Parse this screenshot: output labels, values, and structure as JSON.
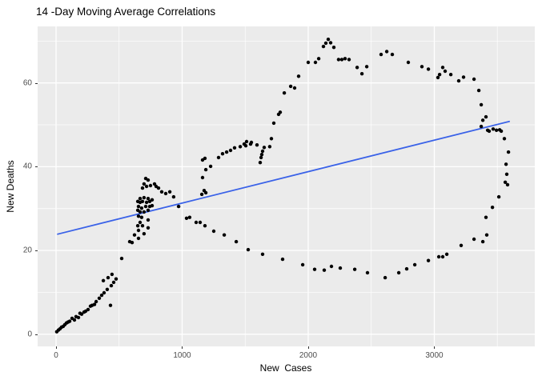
{
  "chart_data": {
    "type": "scatter",
    "title": "14 -Day Moving Average Correlations",
    "xlabel": "New  Cases",
    "ylabel": "New Deaths",
    "x_ticks": [
      0,
      1000,
      2000,
      3000
    ],
    "y_ticks": [
      0,
      20,
      40,
      60
    ],
    "x_minor_ticks": [
      500,
      1500,
      2500,
      3500
    ],
    "y_minor_ticks": [
      10,
      30,
      50,
      70
    ],
    "x_range": [
      -146,
      3797
    ],
    "y_range": [
      -2.9,
      73.5
    ],
    "grid": "on",
    "legend": "none",
    "panel_background": "#EBEBEB",
    "grid_color": "#FFFFFF",
    "point_color": "#000000",
    "tick_label_color": "#4d4d4d",
    "trend_line": {
      "color": "#3A62E8",
      "x1": 13,
      "y1": 23.9,
      "x2": 3594,
      "y2": 50.8
    },
    "points": [
      [
        6,
        0.6
      ],
      [
        19,
        1.0
      ],
      [
        32,
        1.3
      ],
      [
        44,
        1.7
      ],
      [
        57,
        1.9
      ],
      [
        70,
        2.3
      ],
      [
        83,
        2.7
      ],
      [
        95,
        2.9
      ],
      [
        108,
        3.1
      ],
      [
        127,
        3.8
      ],
      [
        146,
        3.4
      ],
      [
        159,
        4.2
      ],
      [
        178,
        4.0
      ],
      [
        190,
        5.0
      ],
      [
        203,
        4.8
      ],
      [
        222,
        5.3
      ],
      [
        235,
        5.5
      ],
      [
        254,
        5.9
      ],
      [
        273,
        6.7
      ],
      [
        286,
        6.9
      ],
      [
        305,
        7.1
      ],
      [
        318,
        7.8
      ],
      [
        343,
        8.6
      ],
      [
        362,
        9.3
      ],
      [
        381,
        9.9
      ],
      [
        406,
        10.7
      ],
      [
        432,
        6.9
      ],
      [
        438,
        11.6
      ],
      [
        457,
        12.4
      ],
      [
        476,
        13.2
      ],
      [
        375,
        12.8
      ],
      [
        413,
        13.5
      ],
      [
        444,
        14.3
      ],
      [
        521,
        18.1
      ],
      [
        584,
        22.1
      ],
      [
        603,
        21.9
      ],
      [
        622,
        23.7
      ],
      [
        648,
        25.9
      ],
      [
        711,
        37.2
      ],
      [
        730,
        36.8
      ],
      [
        698,
        35.9
      ],
      [
        686,
        34.9
      ],
      [
        718,
        35.3
      ],
      [
        749,
        35.5
      ],
      [
        781,
        35.9
      ],
      [
        794,
        35.3
      ],
      [
        813,
        34.9
      ],
      [
        838,
        34.0
      ],
      [
        870,
        33.6
      ],
      [
        902,
        34.0
      ],
      [
        933,
        32.8
      ],
      [
        972,
        30.5
      ],
      [
        667,
        32.4
      ],
      [
        698,
        32.6
      ],
      [
        730,
        32.4
      ],
      [
        648,
        31.7
      ],
      [
        667,
        31.5
      ],
      [
        686,
        31.7
      ],
      [
        718,
        31.5
      ],
      [
        743,
        31.7
      ],
      [
        762,
        32.1
      ],
      [
        654,
        30.5
      ],
      [
        679,
        30.1
      ],
      [
        711,
        30.5
      ],
      [
        743,
        30.5
      ],
      [
        762,
        30.7
      ],
      [
        648,
        29.6
      ],
      [
        667,
        29.2
      ],
      [
        698,
        29.2
      ],
      [
        730,
        29.6
      ],
      [
        654,
        28.2
      ],
      [
        679,
        27.9
      ],
      [
        730,
        27.3
      ],
      [
        667,
        26.7
      ],
      [
        686,
        25.9
      ],
      [
        730,
        25.4
      ],
      [
        654,
        24.8
      ],
      [
        698,
        24.0
      ],
      [
        654,
        22.9
      ],
      [
        1156,
        33.4
      ],
      [
        1175,
        34.3
      ],
      [
        1188,
        33.8
      ],
      [
        1162,
        37.4
      ],
      [
        1188,
        39.3
      ],
      [
        1226,
        40.1
      ],
      [
        1162,
        41.6
      ],
      [
        1181,
        42.0
      ],
      [
        1289,
        42.2
      ],
      [
        1321,
        43.1
      ],
      [
        1353,
        43.5
      ],
      [
        1384,
        43.9
      ],
      [
        1416,
        44.5
      ],
      [
        1461,
        44.8
      ],
      [
        1505,
        45.0
      ],
      [
        1543,
        45.4
      ],
      [
        1492,
        45.4
      ],
      [
        1511,
        46.0
      ],
      [
        1549,
        45.8
      ],
      [
        1594,
        45.2
      ],
      [
        1651,
        44.6
      ],
      [
        1695,
        44.8
      ],
      [
        1638,
        43.7
      ],
      [
        1632,
        42.9
      ],
      [
        1626,
        42.2
      ],
      [
        1619,
        41.0
      ],
      [
        1708,
        46.7
      ],
      [
        1727,
        50.4
      ],
      [
        1765,
        52.5
      ],
      [
        1778,
        53.0
      ],
      [
        1810,
        57.6
      ],
      [
        1861,
        59.2
      ],
      [
        1892,
        58.8
      ],
      [
        1924,
        61.6
      ],
      [
        2000,
        64.9
      ],
      [
        2057,
        64.9
      ],
      [
        2083,
        65.8
      ],
      [
        2121,
        68.7
      ],
      [
        2140,
        69.5
      ],
      [
        2159,
        70.4
      ],
      [
        2178,
        69.6
      ],
      [
        2203,
        68.5
      ],
      [
        2241,
        65.6
      ],
      [
        2267,
        65.6
      ],
      [
        2292,
        65.8
      ],
      [
        2324,
        65.6
      ],
      [
        2388,
        63.7
      ],
      [
        2426,
        62.2
      ],
      [
        2464,
        63.9
      ],
      [
        2578,
        66.8
      ],
      [
        2623,
        67.5
      ],
      [
        2667,
        66.8
      ],
      [
        2794,
        64.9
      ],
      [
        2902,
        63.9
      ],
      [
        2953,
        63.3
      ],
      [
        3029,
        61.3
      ],
      [
        3042,
        62.0
      ],
      [
        3067,
        63.7
      ],
      [
        3086,
        62.8
      ],
      [
        3131,
        62.0
      ],
      [
        3194,
        60.5
      ],
      [
        3232,
        61.4
      ],
      [
        3315,
        60.9
      ],
      [
        3353,
        58.2
      ],
      [
        3372,
        54.8
      ],
      [
        3385,
        51.1
      ],
      [
        3372,
        49.6
      ],
      [
        3410,
        51.9
      ],
      [
        3423,
        48.7
      ],
      [
        3435,
        48.5
      ],
      [
        3467,
        49.0
      ],
      [
        3493,
        48.7
      ],
      [
        3518,
        48.8
      ],
      [
        3531,
        48.5
      ],
      [
        3556,
        46.7
      ],
      [
        3588,
        43.5
      ],
      [
        3569,
        40.6
      ],
      [
        3575,
        38.2
      ],
      [
        3563,
        36.3
      ],
      [
        3581,
        35.7
      ],
      [
        3512,
        32.8
      ],
      [
        3461,
        30.3
      ],
      [
        3410,
        27.9
      ],
      [
        3416,
        23.7
      ],
      [
        3385,
        22.1
      ],
      [
        3315,
        22.7
      ],
      [
        3213,
        21.2
      ],
      [
        3099,
        19.1
      ],
      [
        3067,
        18.5
      ],
      [
        3036,
        18.5
      ],
      [
        2953,
        17.6
      ],
      [
        2845,
        16.6
      ],
      [
        2781,
        15.6
      ],
      [
        2718,
        14.7
      ],
      [
        2610,
        13.5
      ],
      [
        2470,
        14.7
      ],
      [
        2369,
        15.5
      ],
      [
        2254,
        15.8
      ],
      [
        2184,
        16.2
      ],
      [
        2127,
        15.3
      ],
      [
        2051,
        15.5
      ],
      [
        1956,
        16.6
      ],
      [
        1797,
        17.9
      ],
      [
        1638,
        19.1
      ],
      [
        1524,
        20.2
      ],
      [
        1429,
        22.1
      ],
      [
        1334,
        23.7
      ],
      [
        1251,
        24.6
      ],
      [
        1181,
        25.9
      ],
      [
        1143,
        26.7
      ],
      [
        1111,
        26.7
      ],
      [
        1060,
        27.9
      ],
      [
        1035,
        27.7
      ]
    ]
  }
}
